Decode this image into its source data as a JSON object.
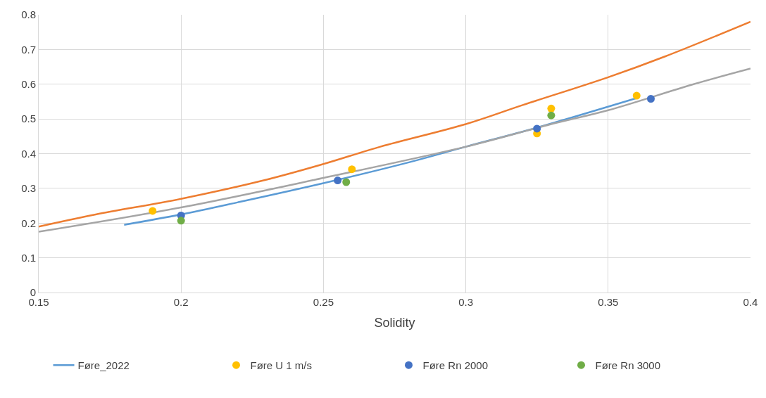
{
  "chart_data": {
    "type": "line",
    "xlabel": "Solidity",
    "xlim": [
      0.15,
      0.4
    ],
    "xticks": [
      0.15,
      0.2,
      0.25,
      0.3,
      0.35,
      0.4
    ],
    "ylim": [
      0,
      0.8
    ],
    "yticks": [
      0,
      0.1,
      0.2,
      0.3,
      0.4,
      0.5,
      0.6,
      0.7,
      0.8
    ],
    "grid": true,
    "legend": "bottom",
    "series": [
      {
        "name": "Føre_2022",
        "color": "#5b9bd5",
        "marker": "none",
        "x": [
          0.18,
          0.2,
          0.22,
          0.25,
          0.28,
          0.3,
          0.325,
          0.36
        ],
        "values": [
          0.195,
          0.225,
          0.26,
          0.315,
          0.375,
          0.42,
          0.475,
          0.56
        ]
      },
      {
        "color": "#ed7d31",
        "marker": "none",
        "x": [
          0.15,
          0.17,
          0.2,
          0.23,
          0.25,
          0.27,
          0.3,
          0.32,
          0.35,
          0.37,
          0.4
        ],
        "values": [
          0.19,
          0.225,
          0.27,
          0.325,
          0.37,
          0.42,
          0.485,
          0.54,
          0.62,
          0.68,
          0.78
        ]
      },
      {
        "color": "#a5a5a5",
        "marker": "none",
        "x": [
          0.15,
          0.2,
          0.25,
          0.3,
          0.33,
          0.35,
          0.38,
          0.4
        ],
        "values": [
          0.175,
          0.245,
          0.33,
          0.42,
          0.485,
          0.525,
          0.6,
          0.645
        ]
      },
      {
        "name": "Føre U 1 m/s",
        "type": "scatter",
        "color": "#ffc000",
        "marker": "circle",
        "x": [
          0.19,
          0.26,
          0.325,
          0.33,
          0.36
        ],
        "values": [
          0.235,
          0.355,
          0.458,
          0.53,
          0.567
        ]
      },
      {
        "name": "Føre Rn 2000",
        "type": "scatter",
        "color": "#4472c4",
        "marker": "circle",
        "x": [
          0.2,
          0.255,
          0.325,
          0.365
        ],
        "values": [
          0.222,
          0.323,
          0.472,
          0.558
        ]
      },
      {
        "name": "Føre Rn 3000",
        "type": "scatter",
        "color": "#70ad47",
        "marker": "circle",
        "x": [
          0.2,
          0.258,
          0.33
        ],
        "values": [
          0.207,
          0.318,
          0.51
        ]
      }
    ]
  }
}
